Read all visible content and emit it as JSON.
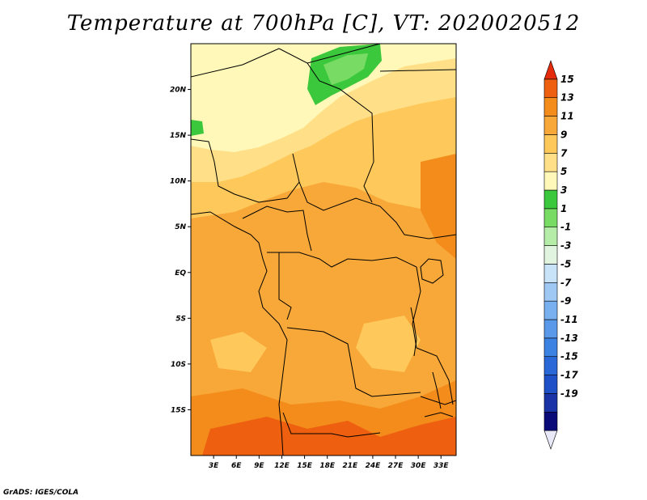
{
  "title": "Temperature at 700hPa [C], VT: 2020020512",
  "credit": "GrADS: IGES/COLA",
  "map": {
    "lat_ticks": [
      "20N",
      "15N",
      "10N",
      "5N",
      "EQ",
      "5S",
      "10S",
      "15S"
    ],
    "lon_ticks": [
      "3E",
      "6E",
      "9E",
      "12E",
      "15E",
      "18E",
      "21E",
      "24E",
      "27E",
      "30E",
      "33E"
    ],
    "lat_values": [
      20,
      15,
      10,
      5,
      0,
      -5,
      -10,
      -15
    ],
    "lon_values": [
      3,
      6,
      9,
      12,
      15,
      18,
      21,
      24,
      27,
      30,
      33
    ],
    "lon_range": [
      0,
      35
    ],
    "lat_range": [
      -20,
      25
    ]
  },
  "colorbar": {
    "labels": [
      "15",
      "13",
      "11",
      "9",
      "7",
      "5",
      "3",
      "1",
      "-1",
      "-3",
      "-5",
      "-7",
      "-9",
      "-11",
      "-13",
      "-15",
      "-17",
      "-19"
    ],
    "colors": [
      "#e8e8f8",
      "#0a0a78",
      "#1a34a8",
      "#1e50c8",
      "#2a68d8",
      "#3c82e2",
      "#5a98ea",
      "#78b0f0",
      "#a0c8f4",
      "#c8e2f8",
      "#e0f4e0",
      "#b4eca8",
      "#78dc64",
      "#3cc83c",
      "#fff8b8",
      "#ffe088",
      "#ffc85a",
      "#f8a838",
      "#f48c1c",
      "#ee6010",
      "#e42c0c"
    ]
  }
}
